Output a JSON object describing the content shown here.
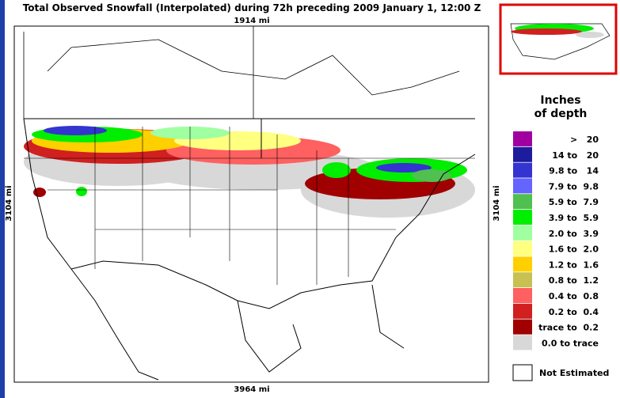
{
  "header": {
    "title": "Total Observed Snowfall (Interpolated) during 72h preceding 2009 January 1, 12:00 Z"
  },
  "map": {
    "top_scale": "1914 mi",
    "bottom_scale": "3964 mi",
    "left_scale": "3104 mi",
    "right_scale": "3104 mi"
  },
  "legend": {
    "title_line1": "Inches",
    "title_line2": "of depth",
    "items": [
      {
        "label": ">   20",
        "color": "#a000a0"
      },
      {
        "label": "14 to   20",
        "color": "#1c1c9c"
      },
      {
        "label": "9.8 to   14",
        "color": "#3434d0"
      },
      {
        "label": "7.9 to  9.8",
        "color": "#6464ff"
      },
      {
        "label": "5.9 to  7.9",
        "color": "#50c050"
      },
      {
        "label": "3.9 to  5.9",
        "color": "#00ee00"
      },
      {
        "label": "2.0 to  3.9",
        "color": "#a0ffa0"
      },
      {
        "label": "1.6 to  2.0",
        "color": "#ffff80"
      },
      {
        "label": "1.2 to  1.6",
        "color": "#ffd000"
      },
      {
        "label": "0.8 to  1.2",
        "color": "#c8c050"
      },
      {
        "label": "0.4 to  0.8",
        "color": "#ff6060"
      },
      {
        "label": "0.2 to  0.4",
        "color": "#d02020"
      },
      {
        "label": "trace to  0.2",
        "color": "#a00000"
      },
      {
        "label": "0.0 to trace",
        "color": "#d8d8d8"
      }
    ],
    "not_estimated": "Not Estimated"
  }
}
